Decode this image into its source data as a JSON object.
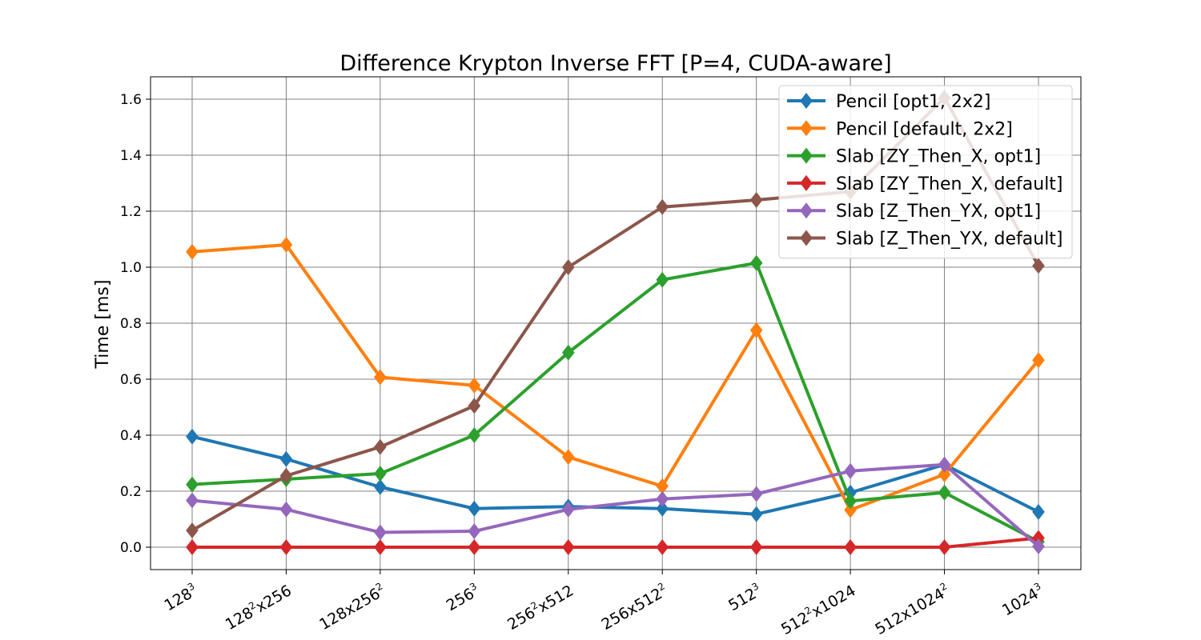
{
  "chart_data": {
    "type": "line",
    "title": "Difference Krypton Inverse FFT [P=4, CUDA-aware]",
    "xlabel": "",
    "ylabel": "Time [ms]",
    "ylim": [
      -0.08,
      1.68
    ],
    "y_ticks": [
      "0.0",
      "0.2",
      "0.4",
      "0.6",
      "0.8",
      "1.0",
      "1.2",
      "1.4",
      "1.6"
    ],
    "grid": true,
    "legend_position": "top-right",
    "categories": [
      {
        "base": "128",
        "sup": "3",
        "rest": "",
        "sup2": ""
      },
      {
        "base": "128",
        "sup": "2",
        "rest": "x256",
        "sup2": ""
      },
      {
        "base": "128x256",
        "sup": "2",
        "rest": "",
        "sup2": ""
      },
      {
        "base": "256",
        "sup": "3",
        "rest": "",
        "sup2": ""
      },
      {
        "base": "256",
        "sup": "2",
        "rest": "x512",
        "sup2": ""
      },
      {
        "base": "256x512",
        "sup": "2",
        "rest": "",
        "sup2": ""
      },
      {
        "base": "512",
        "sup": "3",
        "rest": "",
        "sup2": ""
      },
      {
        "base": "512",
        "sup": "2",
        "rest": "x1024",
        "sup2": ""
      },
      {
        "base": "512x1024",
        "sup": "2",
        "rest": "",
        "sup2": ""
      },
      {
        "base": "1024",
        "sup": "3",
        "rest": "",
        "sup2": ""
      }
    ],
    "series": [
      {
        "name": "Pencil [opt1, 2x2]",
        "color": "#1f77b4",
        "values": [
          0.395,
          0.315,
          0.215,
          0.138,
          0.145,
          0.138,
          0.118,
          0.195,
          0.295,
          0.126
        ]
      },
      {
        "name": "Pencil [default, 2x2]",
        "color": "#ff7f0e",
        "values": [
          1.055,
          1.08,
          0.607,
          0.578,
          0.322,
          0.218,
          0.775,
          0.133,
          0.26,
          0.668
        ]
      },
      {
        "name": "Slab [ZY_Then_X, opt1]",
        "color": "#2ca02c",
        "values": [
          0.224,
          0.243,
          0.263,
          0.4,
          0.695,
          0.955,
          1.015,
          0.165,
          0.195,
          0.02
        ]
      },
      {
        "name": "Slab [ZY_Then_X, default]",
        "color": "#d62728",
        "values": [
          0.0,
          0.0,
          0.0,
          0.0,
          0.0,
          0.0,
          0.0,
          0.0,
          0.0,
          0.033
        ]
      },
      {
        "name": "Slab [Z_Then_YX, opt1]",
        "color": "#9467bd",
        "values": [
          0.167,
          0.135,
          0.053,
          0.057,
          0.135,
          0.172,
          0.19,
          0.272,
          0.295,
          0.003
        ]
      },
      {
        "name": "Slab [Z_Then_YX, default]",
        "color": "#8c564b",
        "values": [
          0.06,
          0.255,
          0.358,
          0.505,
          1.0,
          1.215,
          1.24,
          1.27,
          1.605,
          1.005
        ]
      }
    ]
  }
}
